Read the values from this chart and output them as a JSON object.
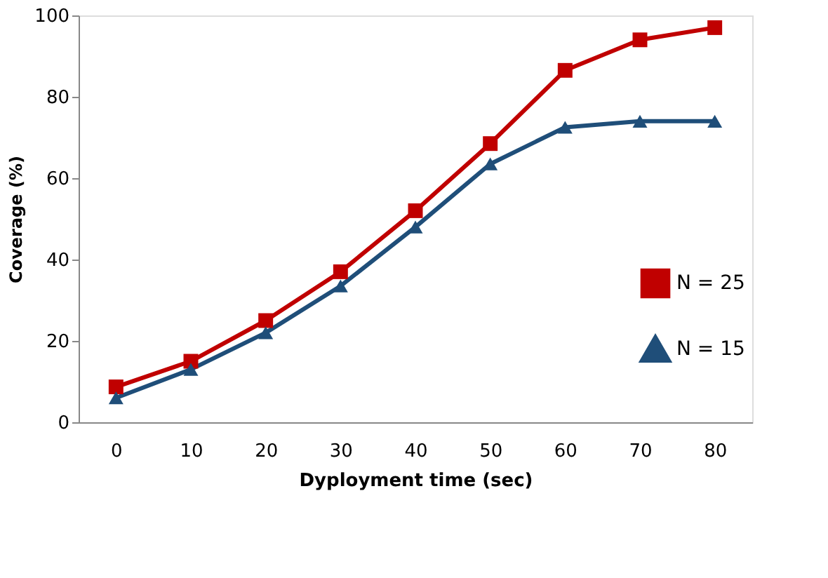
{
  "chart_data": {
    "type": "line",
    "xlabel": "Dyployment time (sec)",
    "ylabel": "Coverage (%)",
    "categories": [
      "0",
      "10",
      "20",
      "30",
      "40",
      "50",
      "60",
      "70",
      "80"
    ],
    "series": [
      {
        "name": "N = 25",
        "color": "#c00000",
        "marker": "square",
        "values": [
          8.7,
          15,
          25,
          37,
          52,
          68.5,
          86.5,
          94,
          97
        ]
      },
      {
        "name": "N = 15",
        "color": "#1f4e79",
        "marker": "triangle",
        "values": [
          6,
          13,
          22,
          33.5,
          48,
          63.5,
          72.5,
          74,
          74
        ]
      }
    ],
    "ylim": [
      0,
      100
    ],
    "yticks": [
      0,
      20,
      40,
      60,
      80,
      100
    ],
    "grid": false,
    "legend": "right",
    "line_style": "solid"
  }
}
